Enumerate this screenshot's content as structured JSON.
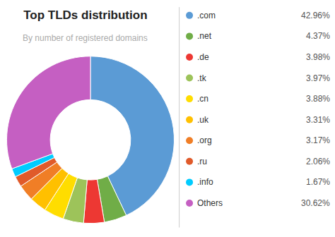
{
  "chart_data": {
    "type": "pie",
    "title": "Top TLDs distribution",
    "subtitle": "By number of registered domains",
    "categories": [
      ".com",
      ".net",
      ".de",
      ".tk",
      ".cn",
      ".uk",
      ".org",
      ".ru",
      ".info",
      "Others"
    ],
    "values": [
      42.96,
      4.37,
      3.98,
      3.97,
      3.88,
      3.31,
      3.17,
      2.06,
      1.67,
      30.62
    ],
    "value_labels": [
      "42.96%",
      "4.37%",
      "3.98%",
      "3.97%",
      "3.88%",
      "3.31%",
      "3.17%",
      "2.06%",
      "1.67%",
      "30.62%"
    ],
    "colors": [
      "#5b9bd5",
      "#70ad47",
      "#ed3833",
      "#9dc35a",
      "#ffdd00",
      "#ffc000",
      "#f07e26",
      "#e05a2a",
      "#00ccff",
      "#c55fc2"
    ],
    "legend": "right"
  }
}
